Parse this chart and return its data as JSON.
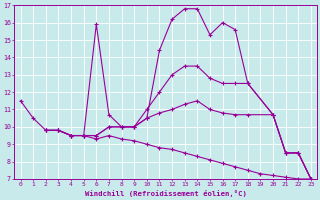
{
  "background_color": "#c8eaea",
  "grid_color": "#b0d8d8",
  "line_color": "#990099",
  "xlabel": "Windchill (Refroidissement éolien,°C)",
  "xlim": [
    -0.5,
    23.5
  ],
  "ylim": [
    7,
    17
  ],
  "xticks": [
    0,
    1,
    2,
    3,
    4,
    5,
    6,
    7,
    8,
    9,
    10,
    11,
    12,
    13,
    14,
    15,
    16,
    17,
    18,
    19,
    20,
    21,
    22,
    23
  ],
  "yticks": [
    7,
    8,
    9,
    10,
    11,
    12,
    13,
    14,
    15,
    16,
    17
  ],
  "lines": [
    {
      "x": [
        0,
        1,
        2,
        3,
        4,
        5,
        6,
        7,
        8,
        9,
        10,
        11,
        12,
        13,
        14,
        15,
        16,
        17,
        18,
        20,
        21,
        22,
        23
      ],
      "y": [
        11.5,
        10.5,
        9.8,
        9.8,
        9.5,
        9.5,
        15.9,
        10.7,
        10.0,
        10.0,
        10.5,
        14.4,
        16.2,
        16.8,
        16.8,
        15.3,
        16.0,
        15.6,
        12.5,
        10.7,
        8.5,
        8.5,
        7.0
      ]
    },
    {
      "x": [
        2,
        3,
        4,
        5,
        6,
        7,
        8,
        9,
        10,
        11,
        12,
        13,
        14,
        15,
        16,
        17,
        18,
        20,
        21,
        22,
        23
      ],
      "y": [
        9.8,
        9.8,
        9.5,
        9.5,
        9.5,
        10.0,
        10.0,
        10.0,
        11.0,
        12.0,
        13.0,
        13.5,
        13.5,
        12.8,
        12.5,
        12.5,
        12.5,
        10.7,
        8.5,
        8.5,
        7.0
      ]
    },
    {
      "x": [
        2,
        3,
        4,
        5,
        6,
        7,
        8,
        9,
        10,
        11,
        12,
        13,
        14,
        15,
        16,
        17,
        18,
        20,
        21,
        22,
        23
      ],
      "y": [
        9.8,
        9.8,
        9.5,
        9.5,
        9.5,
        10.0,
        10.0,
        10.0,
        10.5,
        10.8,
        11.0,
        11.3,
        11.5,
        11.0,
        10.8,
        10.7,
        10.7,
        10.7,
        8.5,
        8.5,
        7.0
      ]
    },
    {
      "x": [
        2,
        3,
        4,
        5,
        6,
        7,
        8,
        9,
        10,
        11,
        12,
        13,
        14,
        15,
        16,
        17,
        18,
        19,
        20,
        21,
        22,
        23
      ],
      "y": [
        9.8,
        9.8,
        9.5,
        9.5,
        9.3,
        9.5,
        9.3,
        9.2,
        9.0,
        8.8,
        8.7,
        8.5,
        8.3,
        8.1,
        7.9,
        7.7,
        7.5,
        7.3,
        7.2,
        7.1,
        7.0,
        7.0
      ]
    }
  ]
}
